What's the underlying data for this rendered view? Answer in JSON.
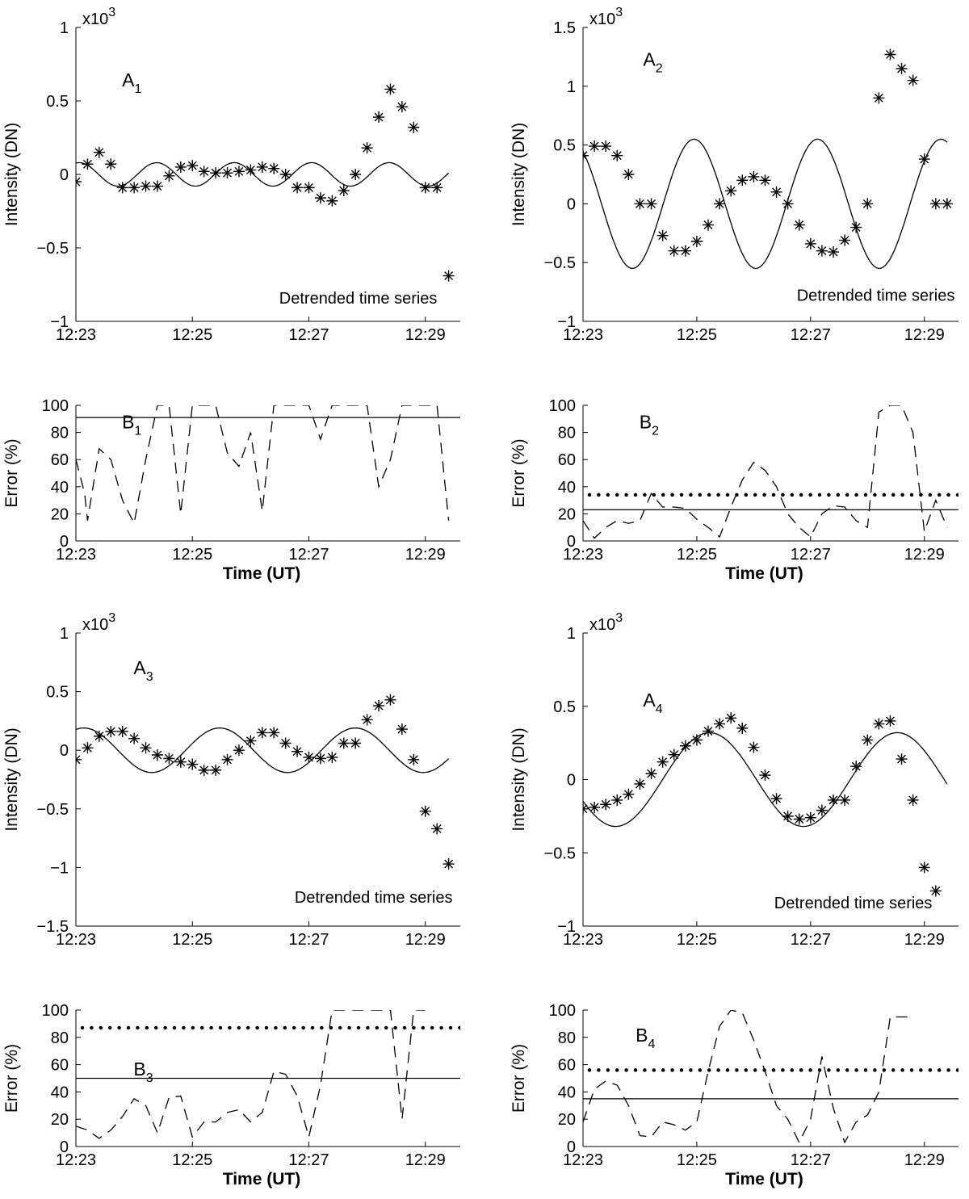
{
  "figure": {
    "title": ""
  },
  "chart_data": [
    {
      "id": "A1",
      "type": "scatter",
      "panel_label": "A",
      "panel_sub": "1",
      "ylabel": "Intensity (DN)",
      "xlabel": "",
      "exponent": "x10",
      "exponent_power": "3",
      "annotation": "Detrended time series",
      "xlim": [
        0,
        6.6
      ],
      "ylim": [
        -1,
        1
      ],
      "xticks": [
        0,
        2,
        4,
        6
      ],
      "xticklabels": [
        "12:23",
        "12:25",
        "12:27",
        "12:29"
      ],
      "yticks": [
        -1,
        -0.5,
        0,
        0.5,
        1
      ],
      "yticklabels": [
        "−1",
        "−0.5",
        "0",
        "0.5",
        "1"
      ],
      "series": [
        {
          "name": "Observed",
          "style": "asterisk",
          "x": [
            0,
            0.2,
            0.4,
            0.6,
            0.8,
            1.0,
            1.2,
            1.4,
            1.6,
            1.8,
            2.0,
            2.2,
            2.4,
            2.6,
            2.8,
            3.0,
            3.2,
            3.4,
            3.6,
            3.8,
            4.0,
            4.2,
            4.4,
            4.6,
            4.8,
            5.0,
            5.2,
            5.4,
            5.6,
            5.8,
            6.0,
            6.2,
            6.4
          ],
          "y": [
            -0.05,
            0.07,
            0.15,
            0.07,
            -0.09,
            -0.09,
            -0.08,
            -0.08,
            -0.01,
            0.05,
            0.06,
            0.02,
            0.01,
            0.01,
            0.02,
            0.03,
            0.05,
            0.04,
            0.0,
            -0.09,
            -0.09,
            -0.16,
            -0.18,
            -0.11,
            0.0,
            0.18,
            0.39,
            0.58,
            0.46,
            0.32,
            -0.09,
            -0.09,
            -0.69
          ]
        },
        {
          "name": "Fit",
          "style": "line",
          "amplitude": 0.08,
          "period": 1.33,
          "phase": 1.3,
          "x_start": 0,
          "x_end": 6.4
        }
      ]
    },
    {
      "id": "A2",
      "type": "scatter",
      "panel_label": "A",
      "panel_sub": "2",
      "ylabel": "Intensity (DN)",
      "xlabel": "",
      "exponent": "x10",
      "exponent_power": "3",
      "annotation": "Detrended time series",
      "xlim": [
        0,
        6.6
      ],
      "ylim": [
        -1,
        1.5
      ],
      "xticks": [
        0,
        2,
        4,
        6
      ],
      "xticklabels": [
        "12:23",
        "12:25",
        "12:27",
        "12:29"
      ],
      "yticks": [
        -1,
        -0.5,
        0,
        0.5,
        1,
        1.5
      ],
      "yticklabels": [
        "−1",
        "−0.5",
        "0",
        "0.5",
        "1",
        "1.5"
      ],
      "series": [
        {
          "name": "Observed",
          "style": "asterisk",
          "x": [
            0,
            0.2,
            0.4,
            0.6,
            0.8,
            1.0,
            1.2,
            1.4,
            1.6,
            1.8,
            2.0,
            2.2,
            2.4,
            2.6,
            2.8,
            3.0,
            3.2,
            3.4,
            3.6,
            3.8,
            4.0,
            4.2,
            4.4,
            4.6,
            4.8,
            5.0,
            5.2,
            5.4,
            5.6,
            5.8,
            6.0,
            6.2,
            6.4
          ],
          "y": [
            0.41,
            0.49,
            0.49,
            0.41,
            0.25,
            0.0,
            0.0,
            -0.27,
            -0.4,
            -0.4,
            -0.32,
            -0.18,
            0.0,
            0.11,
            0.2,
            0.23,
            0.2,
            0.1,
            0.0,
            -0.18,
            -0.34,
            -0.4,
            -0.41,
            -0.31,
            -0.2,
            0.0,
            0.9,
            1.27,
            1.15,
            1.05,
            0.38,
            0.0,
            0.0
          ]
        },
        {
          "name": "Fit",
          "style": "line",
          "amplitude": 0.55,
          "period": 2.17,
          "phase": 2.2,
          "x_start": 0,
          "x_end": 6.4
        }
      ]
    },
    {
      "id": "B1",
      "type": "line",
      "panel_label": "B",
      "panel_sub": "1",
      "ylabel": "Error (%)",
      "xlabel": "Time (UT)",
      "xlim": [
        0,
        6.6
      ],
      "ylim": [
        0,
        100
      ],
      "xticks": [
        0,
        2,
        4,
        6
      ],
      "xticklabels": [
        "12:23",
        "12:25",
        "12:27",
        "12:29"
      ],
      "yticks": [
        0,
        20,
        40,
        60,
        80,
        100
      ],
      "yticklabels": [
        "0",
        "20",
        "40",
        "60",
        "80",
        "100"
      ],
      "series": [
        {
          "name": "Error",
          "style": "dashed",
          "x": [
            0,
            0.15,
            0.2,
            0.4,
            0.6,
            0.8,
            1.0,
            1.2,
            1.4,
            1.6,
            1.8,
            2.0,
            2.2,
            2.4,
            2.6,
            2.8,
            3.0,
            3.2,
            3.4,
            3.6,
            3.8,
            4.0,
            4.2,
            4.4,
            4.6,
            4.8,
            5.0,
            5.2,
            5.4,
            5.6,
            5.8,
            6.0,
            6.2,
            6.4
          ],
          "y": [
            60,
            35,
            15,
            68,
            60,
            30,
            13,
            60,
            100,
            100,
            20,
            100,
            100,
            100,
            65,
            55,
            80,
            22,
            100,
            100,
            100,
            100,
            75,
            100,
            100,
            100,
            100,
            40,
            60,
            100,
            100,
            100,
            100,
            15
          ]
        },
        {
          "name": "Threshold",
          "style": "solid",
          "value": 91
        }
      ]
    },
    {
      "id": "B2",
      "type": "line",
      "panel_label": "B",
      "panel_sub": "2",
      "ylabel": "Error (%)",
      "xlabel": "Time (UT)",
      "xlim": [
        0,
        6.6
      ],
      "ylim": [
        0,
        100
      ],
      "xticks": [
        0,
        2,
        4,
        6
      ],
      "xticklabels": [
        "12:23",
        "12:25",
        "12:27",
        "12:29"
      ],
      "yticks": [
        0,
        20,
        40,
        60,
        80,
        100
      ],
      "yticklabels": [
        "0",
        "20",
        "40",
        "60",
        "80",
        "100"
      ],
      "series": [
        {
          "name": "Error",
          "style": "dashed",
          "x": [
            0,
            0.2,
            0.4,
            0.6,
            0.8,
            1.0,
            1.2,
            1.4,
            1.6,
            1.8,
            2.0,
            2.2,
            2.4,
            2.6,
            2.8,
            3.0,
            3.2,
            3.4,
            3.6,
            3.8,
            4.0,
            4.2,
            4.4,
            4.6,
            4.8,
            5.0,
            5.2,
            5.4,
            5.6,
            5.8,
            6.0,
            6.2,
            6.4
          ],
          "y": [
            15,
            2,
            10,
            15,
            13,
            15,
            35,
            25,
            25,
            24,
            16,
            10,
            3,
            25,
            45,
            58,
            52,
            40,
            20,
            10,
            3,
            20,
            26,
            25,
            15,
            10,
            95,
            100,
            100,
            80,
            7,
            30,
            10
          ]
        },
        {
          "name": "Dotted level",
          "style": "dotted",
          "value": 34
        },
        {
          "name": "Solid level",
          "style": "solid",
          "value": 23
        }
      ]
    },
    {
      "id": "A3",
      "type": "scatter",
      "panel_label": "A",
      "panel_sub": "3",
      "ylabel": "Intensity (DN)",
      "xlabel": "",
      "exponent": "x10",
      "exponent_power": "3",
      "annotation": "Detrended time series",
      "xlim": [
        0,
        6.6
      ],
      "ylim": [
        -1.5,
        1
      ],
      "xticks": [
        0,
        2,
        4,
        6
      ],
      "xticklabels": [
        "12:23",
        "12:25",
        "12:27",
        "12:29"
      ],
      "yticks": [
        -1.5,
        -1,
        -0.5,
        0,
        0.5,
        1
      ],
      "yticklabels": [
        "−1.5",
        "−1",
        "−0.5",
        "0",
        "0.5",
        "1"
      ],
      "series": [
        {
          "name": "Observed",
          "style": "asterisk",
          "x": [
            0,
            0.2,
            0.4,
            0.6,
            0.8,
            1.0,
            1.2,
            1.4,
            1.6,
            1.8,
            2.0,
            2.2,
            2.4,
            2.6,
            2.8,
            3.0,
            3.2,
            3.4,
            3.6,
            3.8,
            4.0,
            4.2,
            4.4,
            4.6,
            4.8,
            5.0,
            5.2,
            5.4,
            5.6,
            5.8,
            6.0,
            6.2,
            6.4
          ],
          "y": [
            -0.08,
            0.02,
            0.12,
            0.16,
            0.16,
            0.1,
            0.02,
            -0.04,
            -0.07,
            -0.1,
            -0.12,
            -0.17,
            -0.17,
            -0.08,
            0.0,
            0.08,
            0.15,
            0.15,
            0.06,
            -0.01,
            -0.06,
            -0.07,
            -0.06,
            0.06,
            0.06,
            0.26,
            0.38,
            0.43,
            0.18,
            -0.08,
            -0.52,
            -0.67,
            -0.97
          ]
        },
        {
          "name": "Fit",
          "style": "line",
          "amplitude": 0.19,
          "period": 2.33,
          "phase": 1.2,
          "x_start": 0,
          "x_end": 6.4
        }
      ]
    },
    {
      "id": "A4",
      "type": "scatter",
      "panel_label": "A",
      "panel_sub": "4",
      "ylabel": "Intensity (DN)",
      "xlabel": "",
      "exponent": "x10",
      "exponent_power": "3",
      "annotation": "Detrended time series",
      "xlim": [
        0,
        6.6
      ],
      "ylim": [
        -1,
        1
      ],
      "xticks": [
        0,
        2,
        4,
        6
      ],
      "xticklabels": [
        "12:23",
        "12:25",
        "12:27",
        "12:29"
      ],
      "yticks": [
        -1,
        -0.5,
        0,
        0.5,
        1
      ],
      "yticklabels": [
        "−1",
        "−0.5",
        "0",
        "0.5",
        "1"
      ],
      "series": [
        {
          "name": "Observed",
          "style": "asterisk",
          "x": [
            0,
            0.2,
            0.4,
            0.6,
            0.8,
            1.0,
            1.2,
            1.4,
            1.6,
            1.8,
            2.0,
            2.2,
            2.4,
            2.6,
            2.8,
            3.0,
            3.2,
            3.4,
            3.6,
            3.8,
            4.0,
            4.2,
            4.4,
            4.6,
            4.8,
            5.0,
            5.2,
            5.4,
            5.6,
            5.8,
            6.0,
            6.2
          ],
          "y": [
            -0.2,
            -0.19,
            -0.17,
            -0.14,
            -0.1,
            -0.03,
            0.04,
            0.12,
            0.17,
            0.23,
            0.27,
            0.33,
            0.38,
            0.42,
            0.35,
            0.22,
            0.03,
            -0.13,
            -0.25,
            -0.27,
            -0.26,
            -0.21,
            -0.14,
            -0.14,
            0.09,
            0.27,
            0.38,
            0.4,
            0.14,
            -0.14,
            -0.6,
            -0.76
          ]
        },
        {
          "name": "Fit",
          "style": "line",
          "amplitude": 0.32,
          "period": 3.3,
          "phase": 3.62,
          "x_start": 0,
          "x_end": 6.4
        }
      ]
    },
    {
      "id": "B3",
      "type": "line",
      "panel_label": "B",
      "panel_sub": "3",
      "ylabel": "Error (%)",
      "xlabel": "Time (UT)",
      "xlim": [
        0,
        6.6
      ],
      "ylim": [
        0,
        100
      ],
      "xticks": [
        0,
        2,
        4,
        6
      ],
      "xticklabels": [
        "12:23",
        "12:25",
        "12:27",
        "12:29"
      ],
      "yticks": [
        0,
        20,
        40,
        60,
        80,
        100
      ],
      "yticklabels": [
        "0",
        "20",
        "40",
        "60",
        "80",
        "100"
      ],
      "series": [
        {
          "name": "Error",
          "style": "dashed",
          "x": [
            0,
            0.2,
            0.4,
            0.6,
            0.8,
            1.0,
            1.2,
            1.4,
            1.6,
            1.8,
            2.0,
            2.2,
            2.4,
            2.6,
            2.8,
            3.0,
            3.2,
            3.4,
            3.6,
            3.8,
            4.0,
            4.2,
            4.4,
            4.6,
            4.8,
            5.0,
            5.2,
            5.4,
            5.6,
            5.8,
            6.0
          ],
          "y": [
            15,
            12,
            6,
            12,
            22,
            35,
            30,
            10,
            36,
            37,
            7,
            18,
            18,
            25,
            27,
            18,
            25,
            55,
            53,
            37,
            7,
            45,
            100,
            100,
            100,
            100,
            100,
            100,
            20,
            100,
            100
          ]
        },
        {
          "name": "Dotted level",
          "style": "dotted",
          "value": 87
        },
        {
          "name": "Solid level",
          "style": "solid",
          "value": 50
        }
      ]
    },
    {
      "id": "B4",
      "type": "line",
      "panel_label": "B",
      "panel_sub": "4",
      "ylabel": "Error (%)",
      "xlabel": "Time (UT)",
      "xlim": [
        0,
        6.6
      ],
      "ylim": [
        0,
        100
      ],
      "xticks": [
        0,
        2,
        4,
        6
      ],
      "xticklabels": [
        "12:23",
        "12:25",
        "12:27",
        "12:29"
      ],
      "yticks": [
        0,
        20,
        40,
        60,
        80,
        100
      ],
      "yticklabels": [
        "0",
        "20",
        "40",
        "60",
        "80",
        "100"
      ],
      "series": [
        {
          "name": "Error",
          "style": "dashed",
          "x": [
            0,
            0.2,
            0.4,
            0.6,
            0.8,
            1.0,
            1.2,
            1.4,
            1.6,
            1.8,
            2.0,
            2.2,
            2.4,
            2.6,
            2.8,
            3.0,
            3.2,
            3.4,
            3.6,
            3.8,
            4.0,
            4.2,
            4.4,
            4.6,
            4.8,
            5.0,
            5.2,
            5.4,
            5.6,
            5.8
          ],
          "y": [
            18,
            42,
            48,
            45,
            30,
            8,
            7,
            18,
            16,
            12,
            18,
            55,
            88,
            100,
            98,
            78,
            55,
            30,
            20,
            3,
            20,
            66,
            28,
            3,
            18,
            23,
            40,
            95,
            95,
            95
          ]
        },
        {
          "name": "Dotted level",
          "style": "dotted",
          "value": 56
        },
        {
          "name": "Solid level",
          "style": "solid",
          "value": 35
        }
      ]
    }
  ]
}
